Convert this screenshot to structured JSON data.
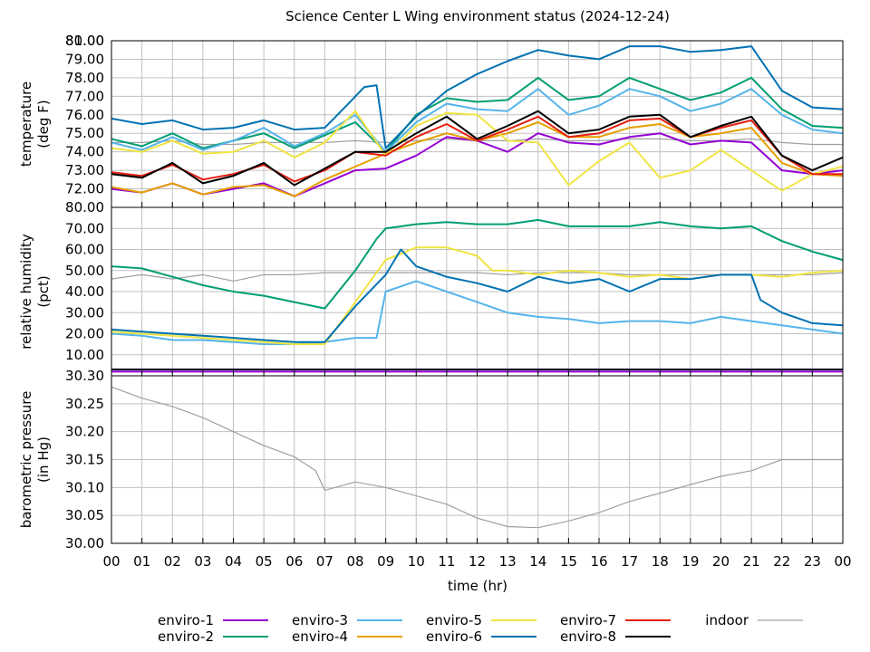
{
  "chart_data": {
    "type": "line",
    "title": "Science Center L Wing environment status (2024-12-24)",
    "xlabel": "time (hr)",
    "x_ticks": [
      "00",
      "01",
      "02",
      "03",
      "04",
      "05",
      "06",
      "07",
      "08",
      "09",
      "10",
      "11",
      "12",
      "13",
      "14",
      "15",
      "16",
      "17",
      "18",
      "19",
      "20",
      "21",
      "22",
      "23",
      "00"
    ],
    "xlim": [
      0,
      24
    ],
    "grid": true,
    "legend_position": "bottom",
    "series_styles": [
      {
        "name": "enviro-1",
        "color": "#9400d3"
      },
      {
        "name": "enviro-2",
        "color": "#009e73"
      },
      {
        "name": "enviro-3",
        "color": "#56b4e9"
      },
      {
        "name": "enviro-4",
        "color": "#e69f00"
      },
      {
        "name": "enviro-5",
        "color": "#f0e442"
      },
      {
        "name": "enviro-6",
        "color": "#0072b2"
      },
      {
        "name": "enviro-7",
        "color": "#e51e10"
      },
      {
        "name": "enviro-8",
        "color": "#000000"
      },
      {
        "name": "indoor",
        "color": "#a0a0a0"
      }
    ],
    "panels": [
      {
        "ylabel_line1": "temperature",
        "ylabel_line2": "(deg F)",
        "ylim": [
          71.0,
          80.0
        ],
        "y_ticks": [
          "72.00",
          "73.00",
          "74.00",
          "75.00",
          "76.00",
          "77.00",
          "78.00",
          "79.00",
          "80.00"
        ],
        "top_tick_overlap": "81.00",
        "series": [
          {
            "name": "enviro-1",
            "x": [
              0,
              1,
              2,
              3,
              4,
              5,
              6,
              7,
              8,
              9,
              10,
              11,
              12,
              13,
              14,
              15,
              16,
              17,
              18,
              19,
              20,
              21,
              22,
              23,
              24
            ],
            "y": [
              72.0,
              71.8,
              72.3,
              71.7,
              72.0,
              72.3,
              71.6,
              72.3,
              73.0,
              73.1,
              73.8,
              74.8,
              74.6,
              74.0,
              75.0,
              74.5,
              74.4,
              74.8,
              75.0,
              74.4,
              74.6,
              74.5,
              73.0,
              72.8,
              73.0
            ]
          },
          {
            "name": "enviro-2",
            "x": [
              0,
              1,
              2,
              3,
              4,
              5,
              6,
              7,
              8,
              9,
              10,
              11,
              12,
              13,
              14,
              15,
              16,
              17,
              18,
              19,
              20,
              21,
              22,
              23,
              24
            ],
            "y": [
              74.7,
              74.3,
              75.0,
              74.2,
              74.6,
              75.0,
              74.2,
              74.9,
              75.6,
              74.0,
              76.0,
              76.9,
              76.7,
              76.8,
              78.0,
              76.8,
              77.0,
              78.0,
              77.4,
              76.8,
              77.2,
              78.0,
              76.3,
              75.4,
              75.3
            ]
          },
          {
            "name": "enviro-3",
            "x": [
              0,
              1,
              2,
              3,
              4,
              5,
              6,
              7,
              8,
              9,
              10,
              11,
              12,
              13,
              14,
              15,
              16,
              17,
              18,
              19,
              20,
              21,
              22,
              23,
              24
            ],
            "y": [
              74.5,
              74.1,
              74.8,
              74.1,
              74.6,
              75.3,
              74.3,
              75.0,
              76.0,
              74.0,
              75.6,
              76.6,
              76.3,
              76.2,
              77.4,
              76.0,
              76.5,
              77.4,
              77.0,
              76.2,
              76.6,
              77.4,
              76.0,
              75.2,
              75.0
            ]
          },
          {
            "name": "enviro-4",
            "x": [
              0,
              1,
              2,
              3,
              4,
              5,
              6,
              7,
              8,
              9,
              10,
              11,
              12,
              13,
              14,
              15,
              16,
              17,
              18,
              19,
              20,
              21,
              22,
              23,
              24
            ],
            "y": [
              72.1,
              71.8,
              72.3,
              71.7,
              72.1,
              72.2,
              71.6,
              72.5,
              73.2,
              73.9,
              74.5,
              75.0,
              74.6,
              75.0,
              75.6,
              74.8,
              74.8,
              75.3,
              75.5,
              74.8,
              75.0,
              75.3,
              73.4,
              72.8,
              72.7
            ]
          },
          {
            "name": "enviro-5",
            "x": [
              0,
              1,
              2,
              3,
              4,
              5,
              6,
              7,
              8,
              9,
              10,
              11,
              12,
              13,
              14,
              15,
              16,
              17,
              18,
              19,
              20,
              21,
              22,
              23,
              24
            ],
            "y": [
              74.2,
              74.0,
              74.6,
              73.9,
              74.0,
              74.6,
              73.7,
              74.5,
              76.2,
              73.8,
              75.4,
              76.1,
              76.0,
              74.6,
              74.5,
              72.2,
              73.5,
              74.5,
              72.6,
              73.0,
              74.1,
              73.0,
              71.9,
              72.8,
              73.2
            ]
          },
          {
            "name": "enviro-6",
            "x": [
              0,
              1,
              2,
              3,
              4,
              5,
              6,
              7,
              7.6,
              8.3,
              8.7,
              9,
              10,
              11,
              12,
              13,
              14,
              15,
              16,
              17,
              18,
              19,
              20,
              21,
              22,
              23,
              24
            ],
            "y": [
              75.8,
              75.5,
              75.7,
              75.2,
              75.3,
              75.7,
              75.2,
              75.3,
              76.3,
              77.5,
              77.6,
              74.2,
              75.9,
              77.3,
              78.2,
              78.9,
              79.5,
              79.2,
              79.0,
              79.7,
              79.7,
              79.4,
              79.5,
              79.7,
              77.3,
              76.4,
              76.3
            ]
          },
          {
            "name": "enviro-7",
            "x": [
              0,
              1,
              2,
              3,
              4,
              5,
              6,
              7,
              8,
              9,
              10,
              11,
              12,
              13,
              14,
              15,
              16,
              17,
              18,
              19,
              20,
              21,
              22,
              23,
              24
            ],
            "y": [
              72.9,
              72.7,
              73.3,
              72.5,
              72.8,
              73.3,
              72.4,
              73.0,
              74.0,
              73.8,
              74.8,
              75.5,
              74.6,
              75.2,
              75.9,
              74.8,
              75.0,
              75.7,
              75.8,
              74.8,
              75.3,
              75.7,
              73.8,
              72.8,
              72.8
            ]
          },
          {
            "name": "enviro-8",
            "x": [
              0,
              1,
              2,
              3,
              4,
              5,
              6,
              7,
              8,
              9,
              10,
              11,
              12,
              13,
              14,
              15,
              16,
              17,
              18,
              19,
              20,
              21,
              22,
              23,
              24
            ],
            "y": [
              72.8,
              72.6,
              73.4,
              72.3,
              72.7,
              73.4,
              72.2,
              73.1,
              74.0,
              74.0,
              75.0,
              75.9,
              74.7,
              75.4,
              76.2,
              75.0,
              75.2,
              75.9,
              76.0,
              74.8,
              75.4,
              75.9,
              73.8,
              73.0,
              73.7
            ]
          },
          {
            "name": "indoor",
            "x": [
              0,
              1,
              2,
              3,
              4,
              5,
              6,
              7,
              8,
              9,
              10,
              11,
              12,
              13,
              14,
              15,
              16,
              17,
              18,
              19,
              20,
              21,
              22,
              23,
              24
            ],
            "y": [
              74.5,
              74.5,
              74.6,
              74.4,
              74.4,
              74.5,
              74.5,
              74.5,
              74.6,
              74.5,
              74.6,
              74.7,
              74.6,
              74.6,
              74.7,
              74.6,
              74.6,
              74.7,
              74.7,
              74.6,
              74.6,
              74.7,
              74.5,
              74.4,
              74.4
            ]
          }
        ]
      },
      {
        "ylabel_line1": "relative humidity",
        "ylabel_line2": "(pct)",
        "ylim": [
          0,
          80
        ],
        "y_ticks": [
          "10.00",
          "20.00",
          "30.00",
          "40.00",
          "50.00",
          "60.00",
          "70.00",
          "80.00"
        ],
        "series": [
          {
            "name": "enviro-1",
            "x": [
              0,
              24
            ],
            "y": [
              2,
              2
            ]
          },
          {
            "name": "enviro-2",
            "x": [
              0,
              1,
              2,
              3,
              4,
              5,
              6,
              7,
              8,
              8.7,
              9,
              10,
              11,
              12,
              13,
              14,
              15,
              16,
              17,
              18,
              19,
              20,
              21,
              22,
              23,
              24
            ],
            "y": [
              52,
              51,
              47,
              43,
              40,
              38,
              35,
              32,
              50,
              65,
              70,
              72,
              73,
              72,
              72,
              74,
              71,
              71,
              71,
              73,
              71,
              70,
              71,
              64,
              59,
              55
            ]
          },
          {
            "name": "enviro-3",
            "x": [
              0,
              1,
              2,
              3,
              4,
              5,
              6,
              7,
              8,
              8.7,
              9,
              10,
              11,
              12,
              13,
              14,
              15,
              16,
              17,
              18,
              19,
              20,
              21,
              22,
              23,
              24
            ],
            "y": [
              20,
              19,
              17,
              17,
              16,
              15,
              15,
              16,
              18,
              18,
              40,
              45,
              40,
              35,
              30,
              28,
              27,
              25,
              26,
              26,
              25,
              28,
              26,
              24,
              22,
              20
            ]
          },
          {
            "name": "enviro-4",
            "x": [
              0,
              24
            ],
            "y": [
              3,
              3
            ]
          },
          {
            "name": "enviro-5",
            "x": [
              0,
              1,
              2,
              3,
              4,
              5,
              6,
              7,
              8,
              9,
              10,
              11,
              12,
              12.5,
              13,
              14,
              15,
              16,
              17,
              18,
              19,
              20,
              21,
              22,
              23,
              24
            ],
            "y": [
              21,
              20,
              19,
              18,
              17,
              16,
              15,
              15,
              35,
              55,
              61,
              61,
              57,
              50,
              50,
              48,
              50,
              49,
              47,
              48,
              46,
              48,
              48,
              47,
              49,
              50
            ]
          },
          {
            "name": "enviro-6",
            "x": [
              0,
              1,
              2,
              3,
              4,
              5,
              6,
              7,
              8,
              9,
              9.5,
              10,
              11,
              12,
              13,
              14,
              15,
              16,
              17,
              18,
              19,
              20,
              21,
              21.3,
              22,
              23,
              24
            ],
            "y": [
              22,
              21,
              20,
              19,
              18,
              17,
              16,
              16,
              33,
              48,
              60,
              52,
              47,
              44,
              40,
              47,
              44,
              46,
              40,
              46,
              46,
              48,
              48,
              36,
              30,
              25,
              24
            ]
          },
          {
            "name": "enviro-7",
            "x": [
              0,
              24
            ],
            "y": [
              3,
              3
            ]
          },
          {
            "name": "enviro-8",
            "x": [
              0,
              24
            ],
            "y": [
              3,
              3
            ]
          },
          {
            "name": "indoor",
            "x": [
              0,
              1,
              2,
              3,
              4,
              5,
              6,
              7,
              8,
              9,
              10,
              11,
              12,
              13,
              14,
              15,
              16,
              17,
              18,
              19,
              20,
              21,
              22,
              23,
              24
            ],
            "y": [
              46,
              48,
              46,
              48,
              45,
              48,
              48,
              49,
              49,
              49,
              49,
              49,
              49,
              48,
              49,
              49,
              49,
              48,
              48,
              48,
              48,
              48,
              48,
              48,
              49
            ]
          }
        ]
      },
      {
        "ylabel_line1": "barometric pressure",
        "ylabel_line2": "(in Hg)",
        "ylim": [
          30.0,
          30.3
        ],
        "y_ticks": [
          "30.00",
          "30.05",
          "30.10",
          "30.15",
          "30.20",
          "30.25"
        ],
        "top_tick_overlap": "30.30",
        "series": [
          {
            "name": "indoor",
            "x": [
              0,
              1,
              2,
              3,
              4,
              5,
              6,
              6.7,
              7,
              8,
              9,
              10,
              11,
              12,
              13,
              14,
              15,
              16,
              17,
              18,
              19,
              20,
              21,
              22,
              23,
              24
            ],
            "y": [
              30.28,
              30.26,
              30.245,
              30.225,
              30.2,
              30.175,
              30.155,
              30.13,
              30.095,
              30.11,
              30.1,
              30.085,
              30.07,
              30.045,
              30.03,
              30.028,
              30.04,
              30.055,
              30.075,
              30.09,
              30.105,
              30.12,
              30.13,
              30.15,
              30.15,
              30.15
            ]
          }
        ]
      }
    ]
  }
}
